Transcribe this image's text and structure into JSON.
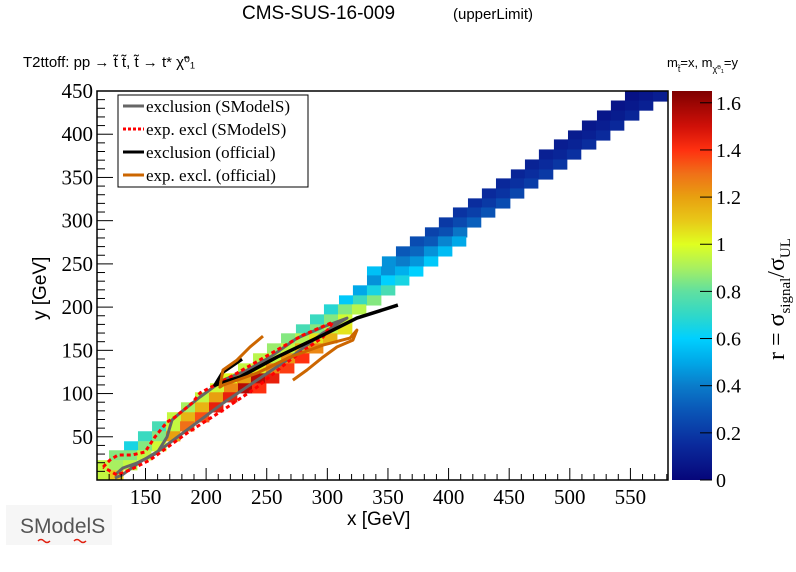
{
  "chart_data": {
    "type": "heatmap",
    "title": "CMS-SUS-16-009",
    "title_tag": "(upperLimit)",
    "subtitle": "T2ttoff: pp → t̃ t̃, t̃ → t* χ̃⁰₁",
    "mass_label": {
      "m1": "m",
      "sub1": "t̃",
      "eq1": "=x, m",
      "sub2": "χ̃⁰₁",
      "eq2": "=y"
    },
    "xlabel": "x [GeV]",
    "ylabel": "y [GeV]",
    "zlabel": {
      "main": "r = σ",
      "sub1": "signal",
      "mid": "/σ",
      "sub2": "UL"
    },
    "xlim": [
      110,
      581
    ],
    "ylim": [
      0,
      450
    ],
    "zlim": [
      0,
      1.65
    ],
    "xticks": [
      150,
      200,
      250,
      300,
      350,
      400,
      450,
      500,
      550
    ],
    "xtick_labels": [
      "150",
      "200",
      "250",
      "300",
      "350",
      "400",
      "450",
      "500",
      "550"
    ],
    "yticks": [
      50,
      100,
      150,
      200,
      250,
      300,
      350,
      400,
      450
    ],
    "ytick_labels": [
      "50",
      "100",
      "150",
      "200",
      "250",
      "300",
      "350",
      "400",
      "450"
    ],
    "zticks": [
      0,
      0.2,
      0.4,
      0.6,
      0.8,
      1,
      1.2,
      1.4,
      1.6
    ],
    "ztick_labels": [
      "0",
      "0.2",
      "0.4",
      "0.6",
      "0.8",
      "1",
      "1.2",
      "1.4",
      "1.6"
    ],
    "bin_width": [
      11.55,
      11.3
    ],
    "colorscale": [
      [
        0,
        "#06067a"
      ],
      [
        0.15,
        "#0a2a9c"
      ],
      [
        0.3,
        "#0a58b8"
      ],
      [
        0.4,
        "#0a7cca"
      ],
      [
        0.5,
        "#00a8e8"
      ],
      [
        0.6,
        "#00d0ff"
      ],
      [
        0.7,
        "#30d8c8"
      ],
      [
        0.8,
        "#60e0a0"
      ],
      [
        0.9,
        "#a8f060"
      ],
      [
        1.0,
        "#e0ff20"
      ],
      [
        1.1,
        "#e8c818"
      ],
      [
        1.2,
        "#e8a010"
      ],
      [
        1.3,
        "#f07018"
      ],
      [
        1.4,
        "#ff3010"
      ],
      [
        1.5,
        "#d01008"
      ],
      [
        1.65,
        "#7f0000"
      ]
    ],
    "rows": [
      {
        "y0": 438.2,
        "x0": 545.5,
        "r": [
          0.05,
          0.07,
          0.1
        ]
      },
      {
        "y0": 427.7,
        "x0": 533.9,
        "r": [
          0.06,
          0.08,
          0.11
        ]
      },
      {
        "y0": 416.2,
        "x0": 522.4,
        "r": [
          0.07,
          0.09,
          0.13
        ]
      },
      {
        "y0": 404.6,
        "x0": 510.0,
        "r": [
          0.08,
          0.1,
          0.14
        ]
      },
      {
        "y0": 393.1,
        "x0": 498.5,
        "r": [
          0.09,
          0.11,
          0.15
        ]
      },
      {
        "y0": 382.7,
        "x0": 486.9,
        "r": [
          0.1,
          0.12,
          0.16
        ]
      },
      {
        "y0": 371.1,
        "x0": 474.5,
        "r": [
          0.11,
          0.13,
          0.17
        ]
      },
      {
        "y0": 359.5,
        "x0": 463.0,
        "r": [
          0.12,
          0.15,
          0.19
        ]
      },
      {
        "y0": 348.0,
        "x0": 451.4,
        "r": [
          0.13,
          0.16,
          0.2
        ]
      },
      {
        "y0": 337.6,
        "x0": 439.1,
        "r": [
          0.14,
          0.17,
          0.21
        ]
      },
      {
        "y0": 326.0,
        "x0": 427.5,
        "r": [
          0.15,
          0.18,
          0.24
        ]
      },
      {
        "y0": 314.5,
        "x0": 416.0,
        "r": [
          0.16,
          0.2,
          0.26
        ]
      },
      {
        "y0": 304.0,
        "x0": 403.6,
        "r": [
          0.18,
          0.22,
          0.28
        ]
      },
      {
        "y0": 292.5,
        "x0": 392.0,
        "r": [
          0.2,
          0.25,
          0.32
        ]
      },
      {
        "y0": 281.0,
        "x0": 380.5,
        "r": [
          0.23,
          0.27,
          0.38
        ]
      },
      {
        "y0": 270.5,
        "x0": 368.1,
        "r": [
          0.26,
          0.3,
          0.42,
          0.5
        ]
      },
      {
        "y0": 259.0,
        "x0": 356.6,
        "r": [
          0.3,
          0.34,
          0.45,
          0.55
        ]
      },
      {
        "y0": 247.4,
        "x0": 345.0,
        "r": [
          0.45,
          0.4,
          0.46,
          0.58
        ]
      },
      {
        "y0": 235.8,
        "x0": 332.7,
        "r": [
          0.56,
          0.45,
          0.52,
          0.6
        ]
      },
      {
        "y0": 225.4,
        "x0": 332.7,
        "r": [
          0.45,
          0.6,
          0.65
        ]
      },
      {
        "y0": 213.9,
        "x0": 321.1,
        "r": [
          0.5,
          0.65,
          0.75
        ]
      },
      {
        "y0": 202.3,
        "x0": 309.6,
        "r": [
          0.58,
          0.72,
          0.85
        ]
      },
      {
        "y0": 191.9,
        "x0": 297.2,
        "r": [
          0.68,
          0.85,
          0.93
        ]
      },
      {
        "y0": 180.3,
        "x0": 285.7,
        "r": [
          0.72,
          0.85,
          0.97
        ]
      },
      {
        "y0": 168.8,
        "x0": 274.1,
        "r": [
          0.75,
          0.85,
          0.95,
          1.05
        ]
      },
      {
        "y0": 158.4,
        "x0": 261.8,
        "r": [
          0.85,
          0.92,
          1.05,
          1.15
        ]
      },
      {
        "y0": 146.8,
        "x0": 250.2,
        "r": [
          0.88,
          0.95,
          1.15,
          1.25
        ]
      },
      {
        "y0": 135.3,
        "x0": 238.7,
        "r": [
          0.93,
          0.95,
          1.22,
          1.4
        ]
      },
      {
        "y0": 123.7,
        "x0": 226.3,
        "r": [
          0.95,
          1.05,
          1.25,
          1.38
        ]
      },
      {
        "y0": 112.1,
        "x0": 213.9,
        "r": [
          1.0,
          1.2,
          1.55,
          1.45
        ]
      },
      {
        "y0": 100.6,
        "x0": 203.2,
        "r": [
          0.97,
          1.25,
          1.55,
          1.4
        ]
      },
      {
        "y0": 90.2,
        "x0": 190.8,
        "r": [
          0.95,
          1.2,
          1.45
        ]
      },
      {
        "y0": 78.6,
        "x0": 179.3,
        "r": [
          0.9,
          1.15,
          1.45
        ]
      },
      {
        "y0": 67.1,
        "x0": 167.7,
        "r": [
          0.95,
          1.15,
          1.35
        ]
      },
      {
        "y0": 56.6,
        "x0": 155.4,
        "r": [
          0.75,
          0.95,
          1.3
        ]
      },
      {
        "y0": 45.1,
        "x0": 143.8,
        "r": [
          0.72,
          0.85,
          1.2
        ]
      },
      {
        "y0": 33.5,
        "x0": 132.3,
        "r": [
          0.65,
          0.85,
          0.97
        ]
      },
      {
        "y0": 23.1,
        "x0": 119.9,
        "r": [
          0.85,
          0.85,
          0.95
        ]
      },
      {
        "y0": 11.6,
        "x0": 108.4,
        "r": [
          0.95,
          0.9,
          0.95
        ]
      },
      {
        "y0": 0.0,
        "x0": 108.4,
        "r": [
          0.95,
          1.1
        ]
      }
    ],
    "series": [
      {
        "name": "exclusion (SModelS)",
        "color": "#666666",
        "style": "solid",
        "width": 3,
        "points": [
          [
            124.8,
            5.8
          ],
          [
            131.4,
            13.9
          ],
          [
            143,
            19.7
          ],
          [
            159.5,
            31.2
          ],
          [
            167.7,
            49.7
          ],
          [
            171.9,
            69.4
          ],
          [
            178.5,
            77.5
          ],
          [
            195,
            96
          ],
          [
            214,
            115.6
          ],
          [
            233.7,
            127
          ],
          [
            252.7,
            142
          ],
          [
            275,
            164
          ],
          [
            296.4,
            177
          ],
          [
            316.2,
            187.3
          ],
          [
            296.4,
            170
          ],
          [
            269,
            141
          ],
          [
            242,
            115.6
          ],
          [
            214,
            89
          ],
          [
            184.2,
            57.8
          ],
          [
            162,
            34.7
          ],
          [
            145.5,
            20.8
          ],
          [
            130.6,
            5.8
          ],
          [
            124.8,
            2.3
          ]
        ]
      },
      {
        "name": "exp. excl (SModelS)",
        "color": "#ff0000",
        "style": "dotted",
        "width": 3,
        "points": [
          [
            115,
            15
          ],
          [
            120.7,
            23.1
          ],
          [
            127.3,
            28.9
          ],
          [
            138.9,
            28.9
          ],
          [
            149.6,
            32.4
          ],
          [
            157.8,
            49.7
          ],
          [
            167.7,
            67
          ],
          [
            174.3,
            72.8
          ],
          [
            188.4,
            89
          ],
          [
            195,
            100.6
          ],
          [
            219.7,
            119
          ],
          [
            246.9,
            141
          ],
          [
            279.9,
            167.6
          ],
          [
            304.6,
            182.7
          ],
          [
            296.4,
            165.3
          ],
          [
            269.2,
            138.7
          ],
          [
            242,
            107.5
          ],
          [
            214,
            81
          ],
          [
            184.2,
            54.3
          ],
          [
            153.7,
            23.1
          ],
          [
            137.2,
            11.6
          ],
          [
            126.5,
            5.8
          ],
          [
            115,
            15
          ]
        ]
      },
      {
        "name": "exclusion (official)",
        "color": "#000000",
        "style": "solid",
        "width": 3.5,
        "points": [
          [
            229.6,
            139.9
          ],
          [
            213.9,
            124.9
          ],
          [
            207.3,
            109.8
          ],
          [
            227.9,
            119
          ],
          [
            258.5,
            142.2
          ],
          [
            296.4,
            167.6
          ],
          [
            324.4,
            187.3
          ],
          [
            358.2,
            202.3
          ]
        ]
      },
      {
        "name": "exp. excl. (official)",
        "color": "#cc6600",
        "style": "solid",
        "width": 3,
        "points": [
          [
            246.9,
            166.5
          ],
          [
            236.2,
            153.8
          ],
          [
            225.5,
            138.7
          ],
          [
            213.9,
            127.2
          ],
          [
            211.4,
            107.5
          ],
          [
            213.9,
            109.8
          ],
          [
            242,
            123.7
          ],
          [
            269.2,
            142.2
          ],
          [
            296.4,
            156
          ],
          [
            318.7,
            164.2
          ],
          [
            324.4,
            173.4
          ],
          [
            321.1,
            161.8
          ],
          [
            307.9,
            153.8
          ],
          [
            296.4,
            142.2
          ],
          [
            283.2,
            127.2
          ],
          [
            271.6,
            115.6
          ]
        ]
      }
    ],
    "legend_placement": "top-left",
    "logo_text": "SModelS"
  }
}
